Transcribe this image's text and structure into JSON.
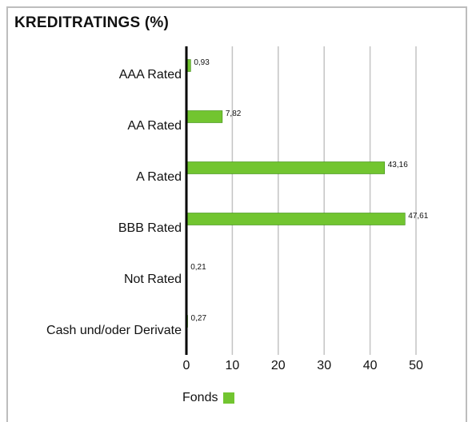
{
  "colors": {
    "bar": "#72c530",
    "bar_border": "#3a8a10",
    "grid": "#c4c4c4",
    "axis": "#000000"
  },
  "chart_data": {
    "type": "bar",
    "orientation": "horizontal",
    "title": "KREDITRATINGS (%)",
    "categories": [
      "AAA Rated",
      "AA Rated",
      "A Rated",
      "BBB Rated",
      "Not Rated",
      "Cash und/oder Derivate"
    ],
    "series": [
      {
        "name": "Fonds",
        "values": [
          0.93,
          7.82,
          43.16,
          47.61,
          0.21,
          0.27
        ],
        "labels": [
          "0,93",
          "7,82",
          "43,16",
          "47,61",
          "0,21",
          "0,27"
        ]
      }
    ],
    "xlim": [
      0,
      50
    ],
    "xticks": [
      0,
      10,
      20,
      30,
      40,
      50
    ],
    "grid": true,
    "legend_position": "bottom-left"
  }
}
